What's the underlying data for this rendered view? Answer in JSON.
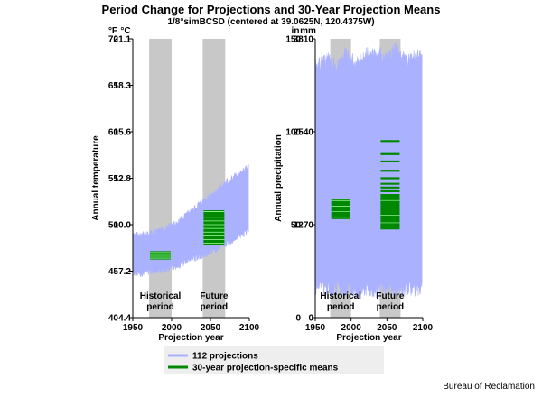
{
  "figure": {
    "title": "Period Change for Projections and 30-Year Projection Means",
    "subtitle": "1/8°simBCSD (centered at 39.0625N, 120.4375W)",
    "credit": "Bureau of Reclamation",
    "legend": {
      "items": [
        {
          "label": "112 projections",
          "color": "#aab1ff"
        },
        {
          "label": "30-year projection-specific means",
          "color": "#008800"
        }
      ]
    },
    "period_labels": {
      "historical": [
        "Historical",
        "period"
      ],
      "future": [
        "Future",
        "period"
      ]
    }
  },
  "colors": {
    "band": "#aab1ff",
    "shade": "#c8c8c8",
    "means": "#008800",
    "mean_line": "#a0ffa0"
  },
  "chart_data": [
    {
      "type": "area",
      "name": "temperature",
      "xlabel": "Projection year",
      "ylabel": "Annual temperature",
      "xlim": [
        1950,
        2100
      ],
      "xticks": [
        1950,
        2000,
        2050,
        2100
      ],
      "ylim": [
        40,
        70
      ],
      "left_unit": "°F",
      "right_unit": "°C",
      "yticks_primary": [
        40,
        45,
        50,
        55,
        60,
        65,
        70
      ],
      "yticks_secondary": [
        "4.4",
        "7.2",
        "10.0",
        "12.8",
        "15.6",
        "18.3",
        "21.1"
      ],
      "periods": {
        "historical": [
          1971,
          2000
        ],
        "future": [
          2040,
          2069
        ]
      },
      "band": {
        "x": [
          1950,
          1960,
          1970,
          1980,
          1990,
          2000,
          2010,
          2020,
          2030,
          2040,
          2050,
          2060,
          2070,
          2080,
          2090,
          2099
        ],
        "low": [
          44.5,
          44.4,
          44.6,
          44.7,
          44.8,
          45.0,
          45.3,
          45.7,
          46.0,
          46.3,
          46.7,
          47.0,
          47.5,
          48.0,
          48.5,
          49.0
        ],
        "high": [
          49.2,
          49.3,
          49.4,
          49.6,
          49.9,
          50.3,
          50.8,
          51.5,
          52.2,
          52.8,
          53.5,
          54.2,
          54.9,
          55.5,
          56.0,
          56.6
        ]
      },
      "historical_means": [
        46.4,
        46.5,
        46.6,
        46.7,
        46.8,
        46.9,
        47.0
      ],
      "future_means": [
        48.0,
        48.2,
        48.4,
        48.6,
        48.8,
        49.0,
        49.2,
        49.4,
        49.6,
        49.8,
        50.0,
        50.2,
        50.4,
        50.6,
        50.8,
        51.0,
        51.4
      ]
    },
    {
      "type": "area",
      "name": "precipitation",
      "xlabel": "Projection year",
      "ylabel": "Annual precipitation",
      "xlim": [
        1950,
        2100
      ],
      "xticks": [
        1950,
        2000,
        2050,
        2100
      ],
      "ylim": [
        0,
        150
      ],
      "left_unit": "in",
      "right_unit": "mm",
      "yticks_primary": [
        0,
        50,
        100,
        150
      ],
      "yticks_secondary": [
        "0",
        "1270",
        "2540",
        "3810"
      ],
      "periods": {
        "historical": [
          1971,
          2000
        ],
        "future": [
          2040,
          2069
        ]
      },
      "band": {
        "x": [
          1950,
          1960,
          1970,
          1980,
          1990,
          2000,
          2010,
          2020,
          2030,
          2040,
          2050,
          2060,
          2070,
          2080,
          2090,
          2099
        ],
        "low": [
          12,
          13,
          11,
          12,
          10,
          11,
          10,
          12,
          11,
          10,
          12,
          11,
          10,
          12,
          11,
          12
        ],
        "high": [
          139,
          141,
          143,
          138,
          146,
          144,
          140,
          148,
          145,
          147,
          143,
          149,
          146,
          142,
          145,
          144
        ]
      },
      "historical_means": [
        53,
        54,
        55,
        56,
        57,
        58,
        59,
        60,
        61,
        62,
        63,
        64
      ],
      "future_means": [
        48,
        50,
        52,
        54,
        56,
        58,
        60,
        62,
        64,
        66,
        68,
        70,
        72,
        75,
        79,
        84,
        88,
        95
      ]
    }
  ]
}
